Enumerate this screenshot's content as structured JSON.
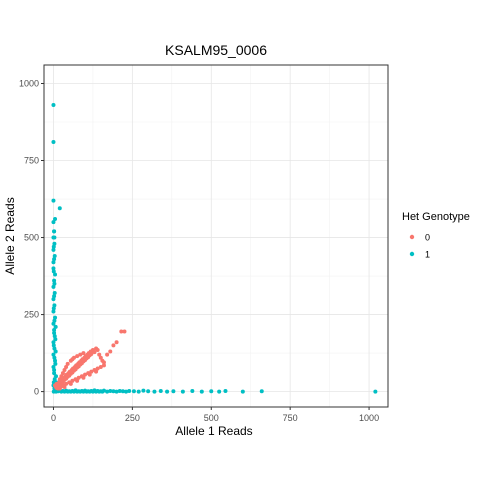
{
  "chart_data": {
    "type": "scatter",
    "title": "KSALM95_0006",
    "xlabel": "Allele 1 Reads",
    "ylabel": "Allele 2 Reads",
    "xlim": [
      -30,
      1060
    ],
    "ylim": [
      -50,
      1060
    ],
    "x_ticks": [
      0,
      250,
      500,
      750,
      1000
    ],
    "y_ticks": [
      0,
      250,
      500,
      750,
      1000
    ],
    "grid": true,
    "legend_position": "right",
    "legend": {
      "title": "Het Genotype",
      "entries": [
        {
          "label": "0",
          "color": "#F8766D"
        },
        {
          "label": "1",
          "color": "#00BFC4"
        }
      ]
    },
    "series": [
      {
        "name": "0",
        "color": "#F8766D",
        "points": [
          [
            5,
            20
          ],
          [
            8,
            15
          ],
          [
            10,
            25
          ],
          [
            12,
            18
          ],
          [
            15,
            22
          ],
          [
            18,
            30
          ],
          [
            20,
            20
          ],
          [
            22,
            35
          ],
          [
            25,
            28
          ],
          [
            28,
            40
          ],
          [
            30,
            32
          ],
          [
            32,
            45
          ],
          [
            35,
            38
          ],
          [
            38,
            50
          ],
          [
            40,
            42
          ],
          [
            42,
            55
          ],
          [
            45,
            48
          ],
          [
            48,
            60
          ],
          [
            50,
            52
          ],
          [
            52,
            65
          ],
          [
            55,
            58
          ],
          [
            58,
            70
          ],
          [
            60,
            62
          ],
          [
            62,
            75
          ],
          [
            65,
            68
          ],
          [
            68,
            80
          ],
          [
            70,
            72
          ],
          [
            72,
            85
          ],
          [
            75,
            78
          ],
          [
            78,
            90
          ],
          [
            80,
            82
          ],
          [
            82,
            95
          ],
          [
            85,
            88
          ],
          [
            88,
            100
          ],
          [
            90,
            92
          ],
          [
            92,
            105
          ],
          [
            95,
            98
          ],
          [
            98,
            110
          ],
          [
            100,
            102
          ],
          [
            102,
            115
          ],
          [
            105,
            108
          ],
          [
            108,
            120
          ],
          [
            110,
            112
          ],
          [
            112,
            125
          ],
          [
            115,
            118
          ],
          [
            118,
            130
          ],
          [
            120,
            122
          ],
          [
            125,
            135
          ],
          [
            130,
            128
          ],
          [
            135,
            140
          ],
          [
            140,
            135
          ],
          [
            145,
            120
          ],
          [
            150,
            110
          ],
          [
            155,
            100
          ],
          [
            160,
            95
          ],
          [
            170,
            120
          ],
          [
            180,
            130
          ],
          [
            190,
            150
          ],
          [
            200,
            160
          ],
          [
            215,
            195
          ],
          [
            225,
            195
          ],
          [
            30,
            20
          ],
          [
            40,
            25
          ],
          [
            50,
            30
          ],
          [
            60,
            35
          ],
          [
            70,
            40
          ],
          [
            80,
            45
          ],
          [
            90,
            50
          ],
          [
            100,
            55
          ],
          [
            110,
            60
          ],
          [
            120,
            65
          ],
          [
            130,
            70
          ],
          [
            140,
            75
          ],
          [
            150,
            80
          ],
          [
            20,
            40
          ],
          [
            25,
            50
          ],
          [
            30,
            60
          ],
          [
            35,
            70
          ],
          [
            40,
            80
          ],
          [
            45,
            90
          ],
          [
            55,
            100
          ],
          [
            60,
            105
          ],
          [
            65,
            110
          ],
          [
            75,
            115
          ],
          [
            85,
            120
          ],
          [
            95,
            125
          ],
          [
            20,
            10
          ],
          [
            35,
            15
          ],
          [
            55,
            25
          ],
          [
            75,
            35
          ],
          [
            95,
            45
          ],
          [
            115,
            55
          ],
          [
            135,
            65
          ],
          [
            160,
            85
          ],
          [
            10,
            12
          ],
          [
            14,
            10
          ],
          [
            18,
            14
          ],
          [
            24,
            16
          ],
          [
            16,
            26
          ],
          [
            26,
            22
          ]
        ]
      },
      {
        "name": "1",
        "color": "#00BFC4",
        "points": [
          [
            0,
            930
          ],
          [
            0,
            810
          ],
          [
            0,
            620
          ],
          [
            20,
            595
          ],
          [
            0,
            550
          ],
          [
            5,
            560
          ],
          [
            2,
            520
          ],
          [
            0,
            500
          ],
          [
            3,
            480
          ],
          [
            0,
            460
          ],
          [
            4,
            440
          ],
          [
            0,
            420
          ],
          [
            0,
            400
          ],
          [
            5,
            380
          ],
          [
            2,
            360
          ],
          [
            0,
            340
          ],
          [
            4,
            320
          ],
          [
            0,
            300
          ],
          [
            3,
            280
          ],
          [
            0,
            260
          ],
          [
            5,
            240
          ],
          [
            0,
            220
          ],
          [
            2,
            200
          ],
          [
            4,
            180
          ],
          [
            0,
            160
          ],
          [
            3,
            140
          ],
          [
            0,
            120
          ],
          [
            5,
            100
          ],
          [
            0,
            80
          ],
          [
            2,
            60
          ],
          [
            4,
            40
          ],
          [
            0,
            20
          ],
          [
            3,
            10
          ],
          [
            1,
            0
          ],
          [
            8,
            0
          ],
          [
            15,
            1
          ],
          [
            20,
            5
          ],
          [
            25,
            0
          ],
          [
            30,
            2
          ],
          [
            35,
            0
          ],
          [
            40,
            3
          ],
          [
            45,
            0
          ],
          [
            50,
            1
          ],
          [
            55,
            0
          ],
          [
            60,
            2
          ],
          [
            65,
            0
          ],
          [
            70,
            4
          ],
          [
            75,
            0
          ],
          [
            80,
            1
          ],
          [
            85,
            0
          ],
          [
            90,
            2
          ],
          [
            95,
            0
          ],
          [
            100,
            3
          ],
          [
            105,
            0
          ],
          [
            110,
            1
          ],
          [
            115,
            0
          ],
          [
            120,
            2
          ],
          [
            125,
            0
          ],
          [
            130,
            4
          ],
          [
            135,
            0
          ],
          [
            140,
            2
          ],
          [
            145,
            0
          ],
          [
            150,
            1
          ],
          [
            155,
            0
          ],
          [
            160,
            3
          ],
          [
            170,
            0
          ],
          [
            180,
            2
          ],
          [
            190,
            1
          ],
          [
            200,
            0
          ],
          [
            210,
            2
          ],
          [
            220,
            1
          ],
          [
            230,
            0
          ],
          [
            240,
            2
          ],
          [
            255,
            1
          ],
          [
            270,
            0
          ],
          [
            285,
            3
          ],
          [
            300,
            1
          ],
          [
            320,
            0
          ],
          [
            340,
            2
          ],
          [
            360,
            0
          ],
          [
            380,
            1
          ],
          [
            410,
            0
          ],
          [
            440,
            2
          ],
          [
            470,
            0
          ],
          [
            500,
            1
          ],
          [
            525,
            0
          ],
          [
            545,
            2
          ],
          [
            600,
            0
          ],
          [
            660,
            1
          ],
          [
            1020,
            0
          ],
          [
            2,
            520
          ],
          [
            3,
            500
          ],
          [
            1,
            470
          ],
          [
            2,
            430
          ],
          [
            1,
            390
          ],
          [
            3,
            350
          ],
          [
            2,
            310
          ],
          [
            1,
            270
          ],
          [
            3,
            230
          ],
          [
            2,
            190
          ],
          [
            1,
            150
          ],
          [
            3,
            110
          ],
          [
            2,
            70
          ],
          [
            1,
            30
          ],
          [
            6,
            90
          ],
          [
            7,
            130
          ],
          [
            6,
            170
          ],
          [
            7,
            210
          ],
          [
            8,
            50
          ],
          [
            9,
            30
          ]
        ]
      }
    ]
  }
}
